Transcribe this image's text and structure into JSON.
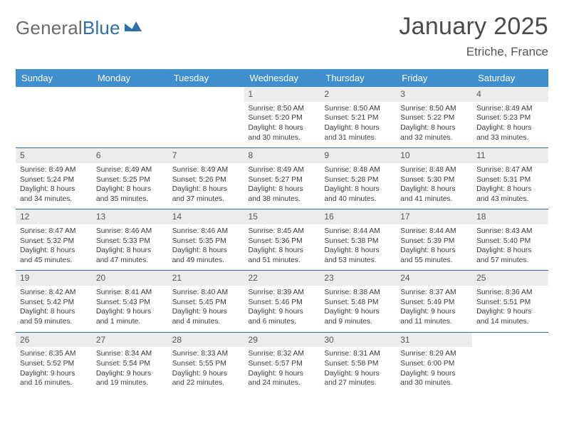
{
  "logo": {
    "text_general": "General",
    "text_blue": "Blue"
  },
  "title": {
    "month": "January 2025",
    "location": "Etriche, France"
  },
  "colors": {
    "header_band": "#3f8fce",
    "header_text": "#ffffff",
    "row_divider": "#2f6fa7",
    "daynum_bg": "#ececec",
    "accent_logo": "#2f6fa7",
    "body_text": "#3c3c3c"
  },
  "weekday_labels": [
    "Sunday",
    "Monday",
    "Tuesday",
    "Wednesday",
    "Thursday",
    "Friday",
    "Saturday"
  ],
  "grid": [
    [
      null,
      null,
      null,
      {
        "n": "1",
        "sunrise": "8:50 AM",
        "sunset": "5:20 PM",
        "daylight": "8 hours and 30 minutes."
      },
      {
        "n": "2",
        "sunrise": "8:50 AM",
        "sunset": "5:21 PM",
        "daylight": "8 hours and 31 minutes."
      },
      {
        "n": "3",
        "sunrise": "8:50 AM",
        "sunset": "5:22 PM",
        "daylight": "8 hours and 32 minutes."
      },
      {
        "n": "4",
        "sunrise": "8:49 AM",
        "sunset": "5:23 PM",
        "daylight": "8 hours and 33 minutes."
      }
    ],
    [
      {
        "n": "5",
        "sunrise": "8:49 AM",
        "sunset": "5:24 PM",
        "daylight": "8 hours and 34 minutes."
      },
      {
        "n": "6",
        "sunrise": "8:49 AM",
        "sunset": "5:25 PM",
        "daylight": "8 hours and 35 minutes."
      },
      {
        "n": "7",
        "sunrise": "8:49 AM",
        "sunset": "5:26 PM",
        "daylight": "8 hours and 37 minutes."
      },
      {
        "n": "8",
        "sunrise": "8:49 AM",
        "sunset": "5:27 PM",
        "daylight": "8 hours and 38 minutes."
      },
      {
        "n": "9",
        "sunrise": "8:48 AM",
        "sunset": "5:28 PM",
        "daylight": "8 hours and 40 minutes."
      },
      {
        "n": "10",
        "sunrise": "8:48 AM",
        "sunset": "5:30 PM",
        "daylight": "8 hours and 41 minutes."
      },
      {
        "n": "11",
        "sunrise": "8:47 AM",
        "sunset": "5:31 PM",
        "daylight": "8 hours and 43 minutes."
      }
    ],
    [
      {
        "n": "12",
        "sunrise": "8:47 AM",
        "sunset": "5:32 PM",
        "daylight": "8 hours and 45 minutes."
      },
      {
        "n": "13",
        "sunrise": "8:46 AM",
        "sunset": "5:33 PM",
        "daylight": "8 hours and 47 minutes."
      },
      {
        "n": "14",
        "sunrise": "8:46 AM",
        "sunset": "5:35 PM",
        "daylight": "8 hours and 49 minutes."
      },
      {
        "n": "15",
        "sunrise": "8:45 AM",
        "sunset": "5:36 PM",
        "daylight": "8 hours and 51 minutes."
      },
      {
        "n": "16",
        "sunrise": "8:44 AM",
        "sunset": "5:38 PM",
        "daylight": "8 hours and 53 minutes."
      },
      {
        "n": "17",
        "sunrise": "8:44 AM",
        "sunset": "5:39 PM",
        "daylight": "8 hours and 55 minutes."
      },
      {
        "n": "18",
        "sunrise": "8:43 AM",
        "sunset": "5:40 PM",
        "daylight": "8 hours and 57 minutes."
      }
    ],
    [
      {
        "n": "19",
        "sunrise": "8:42 AM",
        "sunset": "5:42 PM",
        "daylight": "8 hours and 59 minutes."
      },
      {
        "n": "20",
        "sunrise": "8:41 AM",
        "sunset": "5:43 PM",
        "daylight": "9 hours and 1 minute."
      },
      {
        "n": "21",
        "sunrise": "8:40 AM",
        "sunset": "5:45 PM",
        "daylight": "9 hours and 4 minutes."
      },
      {
        "n": "22",
        "sunrise": "8:39 AM",
        "sunset": "5:46 PM",
        "daylight": "9 hours and 6 minutes."
      },
      {
        "n": "23",
        "sunrise": "8:38 AM",
        "sunset": "5:48 PM",
        "daylight": "9 hours and 9 minutes."
      },
      {
        "n": "24",
        "sunrise": "8:37 AM",
        "sunset": "5:49 PM",
        "daylight": "9 hours and 11 minutes."
      },
      {
        "n": "25",
        "sunrise": "8:36 AM",
        "sunset": "5:51 PM",
        "daylight": "9 hours and 14 minutes."
      }
    ],
    [
      {
        "n": "26",
        "sunrise": "8:35 AM",
        "sunset": "5:52 PM",
        "daylight": "9 hours and 16 minutes."
      },
      {
        "n": "27",
        "sunrise": "8:34 AM",
        "sunset": "5:54 PM",
        "daylight": "9 hours and 19 minutes."
      },
      {
        "n": "28",
        "sunrise": "8:33 AM",
        "sunset": "5:55 PM",
        "daylight": "9 hours and 22 minutes."
      },
      {
        "n": "29",
        "sunrise": "8:32 AM",
        "sunset": "5:57 PM",
        "daylight": "9 hours and 24 minutes."
      },
      {
        "n": "30",
        "sunrise": "8:31 AM",
        "sunset": "5:58 PM",
        "daylight": "9 hours and 27 minutes."
      },
      {
        "n": "31",
        "sunrise": "8:29 AM",
        "sunset": "6:00 PM",
        "daylight": "9 hours and 30 minutes."
      },
      null
    ]
  ],
  "labels": {
    "sunrise": "Sunrise: ",
    "sunset": "Sunset: ",
    "daylight": "Daylight: "
  }
}
